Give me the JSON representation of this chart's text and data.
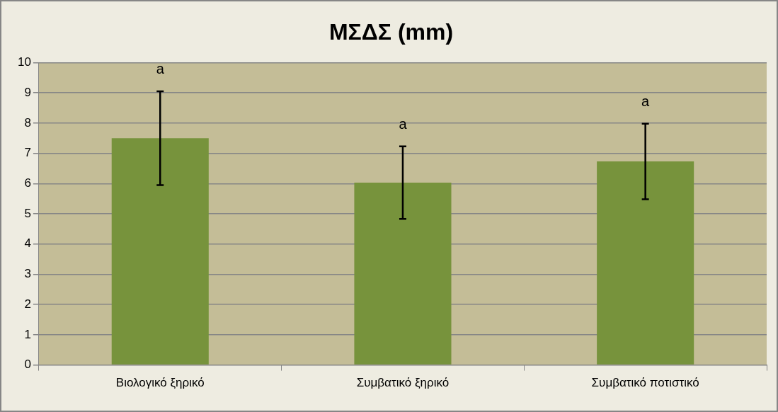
{
  "chart_data": {
    "type": "bar",
    "title": "ΜΣΔΣ (mm)",
    "categories": [
      "Βιολογικό ξηρικό",
      "Συμβατικό ξηρικό",
      "Συμβατικό ποτιστικό"
    ],
    "values": [
      7.5,
      6.03,
      6.73
    ],
    "errors": [
      1.55,
      1.2,
      1.25
    ],
    "color": "#77933c",
    "ylim": [
      0,
      10
    ],
    "yticks": [
      0,
      1,
      2,
      3,
      4,
      5,
      6,
      7,
      8,
      9,
      10
    ],
    "grid": "y",
    "legend": false,
    "annotations": [
      "a",
      "a",
      "a"
    ]
  }
}
